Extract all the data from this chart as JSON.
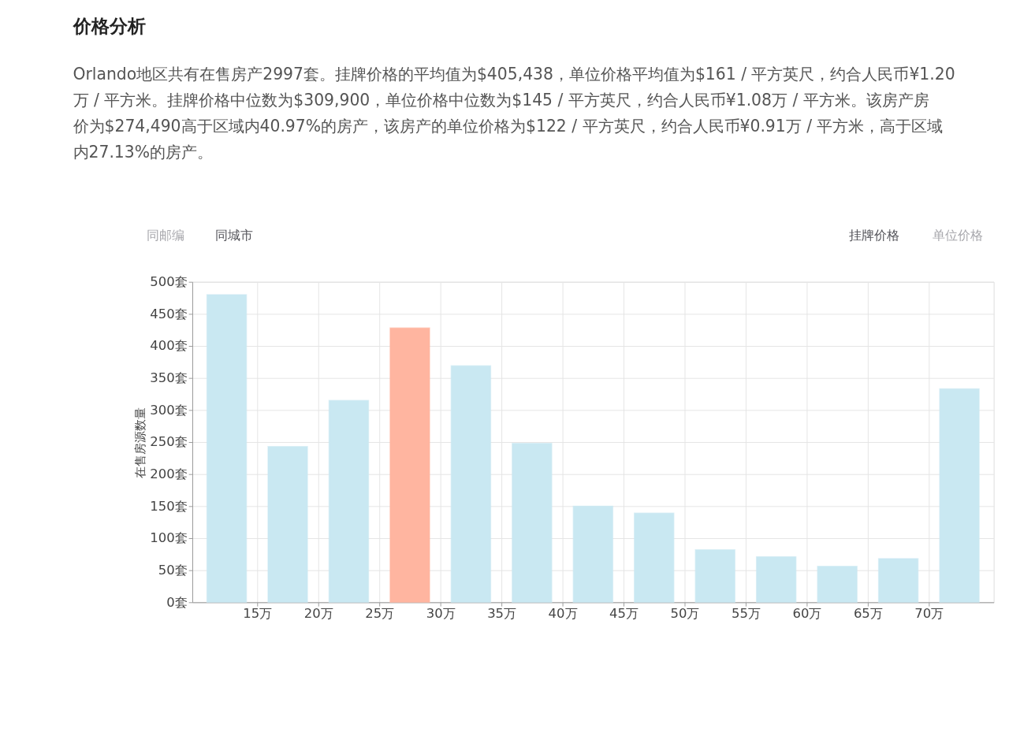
{
  "chart_data": {
    "type": "histogram",
    "title": "价格分析",
    "subtitle": "Orlando地区共有在售房产2997套。挂牌价格的平均值为$405,438，单位价格平均值为$161 / 平方英尺，约合人民币¥1.20万 / 平方米。挂牌价格中位数为$309,900，单位价格中位数为$145 / 平方英尺，约合人民币¥1.08万 / 平方米。该房产房价为$274,490高于区域内40.97%的房产，该房产的单位价格为$122 / 平方英尺，约合人民币¥0.91万 / 平方米，高于区域内27.13%的房产。",
    "annotations": [
      "同邮编",
      "同城市",
      "挂牌价格",
      "单位价格"
    ],
    "ylabel": "在售房源数量",
    "bins": [
      10,
      15,
      20,
      25,
      30,
      35,
      40,
      45,
      50,
      55,
      60,
      65,
      70,
      75
    ],
    "values": [
      480,
      243,
      315,
      428,
      369,
      248,
      150,
      139,
      82,
      71,
      56,
      68,
      333
    ],
    "colors": [
      "#c9e8f2",
      "#c9e8f2",
      "#c9e8f2",
      "#ffb5a0",
      "#c9e8f2",
      "#c9e8f2",
      "#c9e8f2",
      "#c9e8f2",
      "#c9e8f2",
      "#c9e8f2",
      "#c9e8f2",
      "#c9e8f2",
      "#c9e8f2"
    ],
    "xlim": [
      10,
      75
    ],
    "xticks": [
      {
        "value": 15,
        "label": "15万"
      },
      {
        "value": 20,
        "label": "20万"
      },
      {
        "value": 25,
        "label": "25万"
      },
      {
        "value": 30,
        "label": "30万"
      },
      {
        "value": 35,
        "label": "35万"
      },
      {
        "value": 40,
        "label": "40万"
      },
      {
        "value": 45,
        "label": "45万"
      },
      {
        "value": 50,
        "label": "50万"
      },
      {
        "value": 55,
        "label": "55万"
      },
      {
        "value": 60,
        "label": "60万"
      },
      {
        "value": 65,
        "label": "65万"
      },
      {
        "value": 70,
        "label": "70万"
      }
    ],
    "ylim": [
      0,
      500
    ],
    "yticks": [
      {
        "value": 0,
        "label": "0套"
      },
      {
        "value": 50,
        "label": "50套"
      },
      {
        "value": 100,
        "label": "100套"
      },
      {
        "value": 150,
        "label": "150套"
      },
      {
        "value": 200,
        "label": "200套"
      },
      {
        "value": 250,
        "label": "250套"
      },
      {
        "value": 300,
        "label": "300套"
      },
      {
        "value": 350,
        "label": "350套"
      },
      {
        "value": 400,
        "label": "400套"
      },
      {
        "value": 450,
        "label": "450套"
      },
      {
        "value": 500,
        "label": "500套"
      }
    ],
    "grid": true
  }
}
